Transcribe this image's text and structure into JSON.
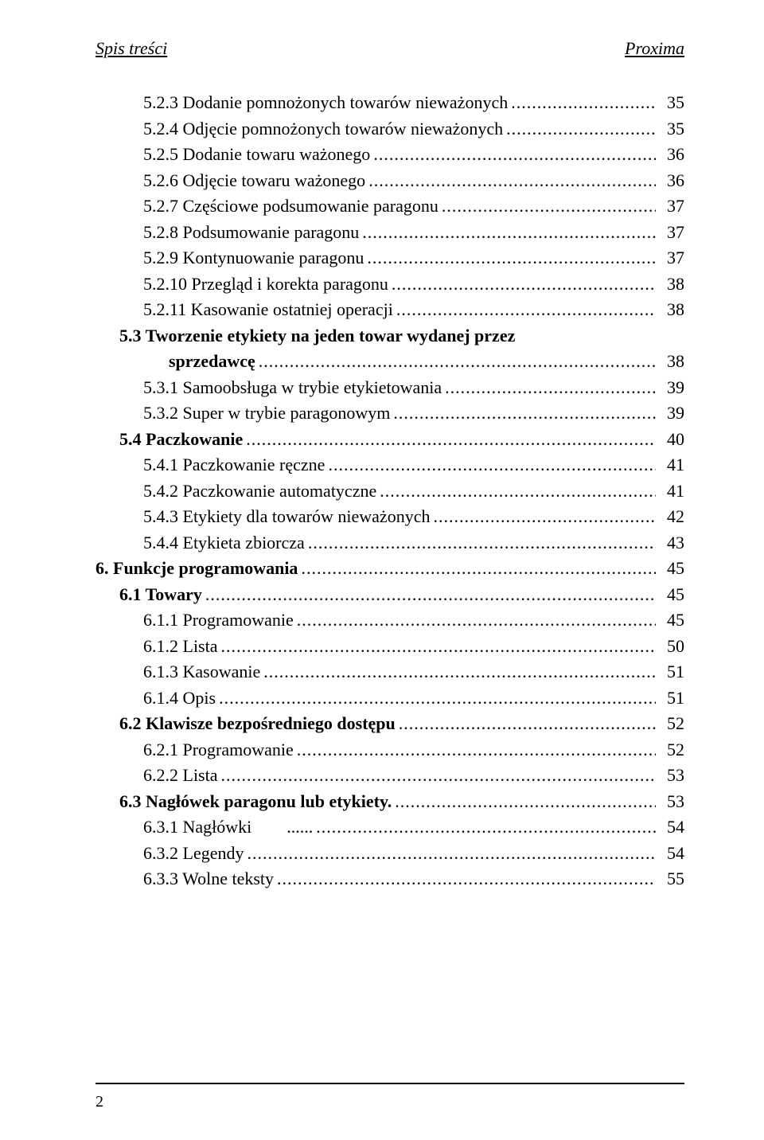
{
  "header": {
    "left": "Spis treści",
    "right": "Proxima"
  },
  "toc": [
    {
      "label": "5.2.3 Dodanie pomnożonych towarów nieważonych",
      "page": "35",
      "indent": "indent-2",
      "bold": false
    },
    {
      "label": "5.2.4 Odjęcie pomnożonych towarów nieważonych",
      "page": "35",
      "indent": "indent-2",
      "bold": false
    },
    {
      "label": "5.2.5 Dodanie towaru ważonego",
      "page": "36",
      "indent": "indent-2",
      "bold": false
    },
    {
      "label": "5.2.6 Odjęcie towaru ważonego",
      "page": "36",
      "indent": "indent-2",
      "bold": false
    },
    {
      "label": "5.2.7 Częściowe podsumowanie paragonu",
      "page": "37",
      "indent": "indent-2",
      "bold": false
    },
    {
      "label": "5.2.8 Podsumowanie paragonu",
      "page": "37",
      "indent": "indent-2",
      "bold": false
    },
    {
      "label": "5.2.9 Kontynuowanie paragonu",
      "page": "37",
      "indent": "indent-2",
      "bold": false
    },
    {
      "label": "5.2.10 Przegląd i korekta paragonu",
      "page": "38",
      "indent": "indent-2",
      "bold": false
    },
    {
      "label": "5.2.11 Kasowanie ostatniej operacji",
      "page": "38",
      "indent": "indent-2",
      "bold": false
    },
    {
      "label": "5.3 Tworzenie etykiety na jeden towar wydanej przez",
      "label2": "sprzedawcę",
      "page": "38",
      "indent": "indent-1",
      "bold": true,
      "wrap": true
    },
    {
      "label": "5.3.1 Samoobsługa w trybie etykietowania",
      "page": "39",
      "indent": "indent-2",
      "bold": false,
      "ellipsis": ".."
    },
    {
      "label": "5.3.2 Super w trybie paragonowym",
      "page": "39",
      "indent": "indent-2",
      "bold": false,
      "ellipsis": ".."
    },
    {
      "label": "5.4 Paczkowanie",
      "page": "40",
      "indent": "indent-1",
      "bold": true
    },
    {
      "label": "5.4.1 Paczkowanie ręczne",
      "page": "41",
      "indent": "indent-2",
      "bold": false
    },
    {
      "label": "5.4.2 Paczkowanie automatyczne",
      "page": "41",
      "indent": "indent-2",
      "bold": false
    },
    {
      "label": "5.4.3 Etykiety dla towarów nieważonych",
      "page": "42",
      "indent": "indent-2",
      "bold": false
    },
    {
      "label": "5.4.4 Etykieta zbiorcza",
      "page": "43",
      "indent": "indent-2",
      "bold": false
    },
    {
      "label": "6.  Funkcje programowania",
      "page": "45",
      "indent": "",
      "bold": true
    },
    {
      "label": "6.1 Towary",
      "page": "45",
      "indent": "indent-1",
      "bold": true
    },
    {
      "label": "6.1.1 Programowanie",
      "page": "45",
      "indent": "indent-2",
      "bold": false
    },
    {
      "label": "6.1.2 Lista",
      "page": "50",
      "indent": "indent-2",
      "bold": false
    },
    {
      "label": "6.1.3 Kasowanie",
      "page": "51",
      "indent": "indent-2",
      "bold": false
    },
    {
      "label": "6.1.4 Opis",
      "page": "51",
      "indent": "indent-2",
      "bold": false
    },
    {
      "label": "6.2 Klawisze bezpośredniego dostępu",
      "page": "52",
      "indent": "indent-1",
      "bold": true
    },
    {
      "label": "6.2.1 Programowanie",
      "page": "52",
      "indent": "indent-2",
      "bold": false
    },
    {
      "label": "6.2.2 Lista",
      "page": "53",
      "indent": "indent-2",
      "bold": false
    },
    {
      "label": "6.3 Nagłówek paragonu lub etykiety.",
      "page": "53",
      "indent": "indent-1",
      "bold": true
    },
    {
      "label": "6.3.1 Nagłówki",
      "post": "......",
      "page": "54",
      "indent": "indent-2",
      "bold": false
    },
    {
      "label": "6.3.2 Legendy",
      "page": "54",
      "indent": "indent-2",
      "bold": false
    },
    {
      "label": "6.3.3 Wolne teksty",
      "page": "55",
      "indent": "indent-2",
      "bold": false
    }
  ],
  "footer": {
    "pagenum": "2"
  }
}
